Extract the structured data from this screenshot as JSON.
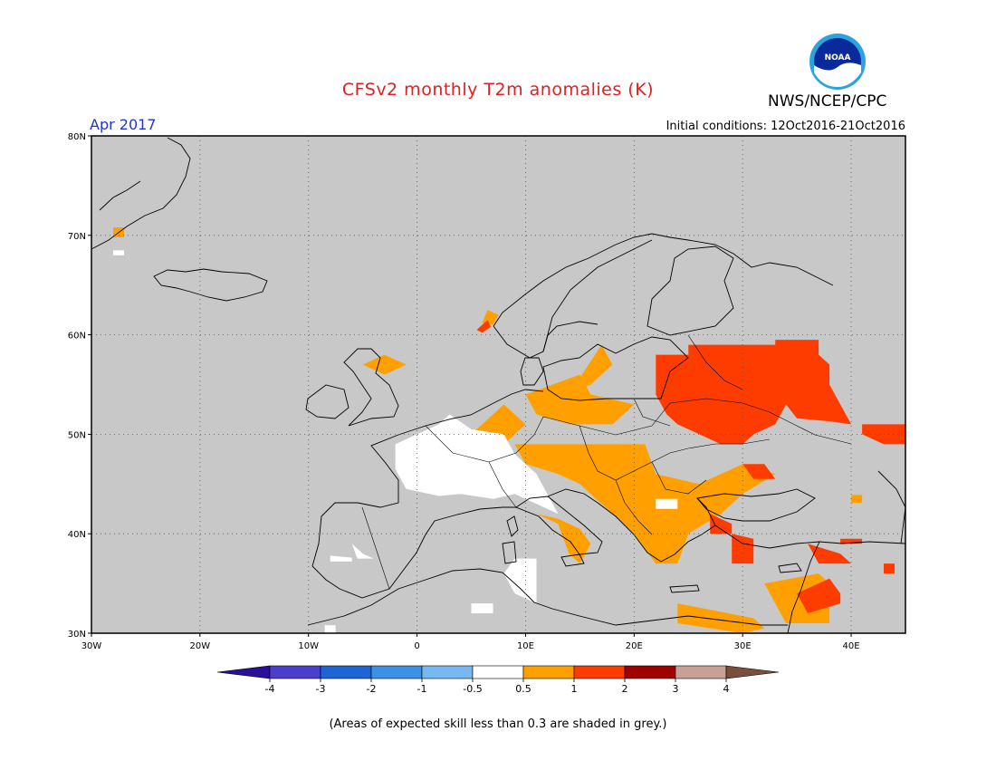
{
  "title": "CFSv2 monthly T2m anomalies (K)",
  "org": "NWS/NCEP/CPC",
  "logo_text": "NOAA",
  "month": "Apr 2017",
  "initial_conditions": "Initial conditions: 12Oct2016-21Oct2016",
  "footnote": "(Areas of expected skill less than 0.3 are shaded in grey.)",
  "map": {
    "lon_range": [
      -30,
      45
    ],
    "lat_range": [
      30,
      80
    ],
    "lon_ticks": [
      {
        "lon": -30,
        "label": "30W"
      },
      {
        "lon": -20,
        "label": "20W"
      },
      {
        "lon": -10,
        "label": "10W"
      },
      {
        "lon": 0,
        "label": "0"
      },
      {
        "lon": 10,
        "label": "10E"
      },
      {
        "lon": 20,
        "label": "20E"
      },
      {
        "lon": 30,
        "label": "30E"
      },
      {
        "lon": 40,
        "label": "40E"
      }
    ],
    "lat_ticks": [
      {
        "lat": 30,
        "label": "30N"
      },
      {
        "lat": 40,
        "label": "40N"
      },
      {
        "lat": 50,
        "label": "50N"
      },
      {
        "lat": 60,
        "label": "60N"
      },
      {
        "lat": 70,
        "label": "70N"
      },
      {
        "lat": 80,
        "label": "80N"
      }
    ],
    "grid": true,
    "background_color": "#c8c8c8"
  },
  "colorbar": {
    "labels": [
      "-4",
      "-3",
      "-2",
      "-1",
      "-0.5",
      "0.5",
      "1",
      "2",
      "3",
      "4"
    ],
    "colors": [
      "#2a0f9a",
      "#4a3fcc",
      "#1e64d2",
      "#3c90e6",
      "#78b8f0",
      "#ffffff",
      "#ffa000",
      "#ff3c00",
      "#a00000",
      "#c8a096",
      "#7a4e3e"
    ]
  },
  "anomaly_regions": [
    {
      "category": "0.5 to 1",
      "color": "#ffa000",
      "polygons": [
        [
          [
            9,
            49
          ],
          [
            21,
            49
          ],
          [
            22,
            46
          ],
          [
            26,
            45
          ],
          [
            30,
            47
          ],
          [
            33,
            46
          ],
          [
            30,
            44
          ],
          [
            28,
            42
          ],
          [
            25,
            40
          ],
          [
            24,
            37
          ],
          [
            22,
            37
          ],
          [
            20,
            40
          ],
          [
            17,
            43
          ],
          [
            15,
            45
          ],
          [
            13,
            46
          ],
          [
            10,
            47
          ]
        ],
        [
          [
            10,
            54
          ],
          [
            15,
            56
          ],
          [
            16,
            54
          ],
          [
            20,
            53
          ],
          [
            18,
            51
          ],
          [
            14,
            51
          ],
          [
            11,
            52
          ]
        ],
        [
          [
            14,
            54
          ],
          [
            17,
            59
          ],
          [
            18,
            57
          ],
          [
            16,
            55
          ]
        ],
        [
          [
            5,
            50
          ],
          [
            8,
            53
          ],
          [
            10,
            51
          ],
          [
            8,
            49
          ]
        ],
        [
          [
            -5,
            57
          ],
          [
            -3,
            58
          ],
          [
            -1,
            57
          ],
          [
            -3,
            56
          ]
        ],
        [
          [
            24,
            33
          ],
          [
            24,
            31
          ],
          [
            30,
            30
          ],
          [
            32,
            30.5
          ],
          [
            31,
            31.5
          ]
        ],
        [
          [
            32,
            35
          ],
          [
            37,
            36
          ],
          [
            38,
            35
          ],
          [
            38,
            31
          ],
          [
            34,
            31
          ],
          [
            33,
            33
          ]
        ],
        [
          [
            11,
            42
          ],
          [
            13,
            41
          ],
          [
            14,
            38
          ],
          [
            15,
            37
          ],
          [
            16,
            39
          ],
          [
            15,
            40.5
          ],
          [
            13,
            41.5
          ]
        ],
        [
          [
            -28,
            70.8
          ],
          [
            -27,
            70.8
          ],
          [
            -27,
            69.8
          ],
          [
            -28,
            69.8
          ]
        ],
        [
          [
            6,
            61.2
          ],
          [
            6.5,
            62.5
          ],
          [
            7.5,
            62
          ],
          [
            7,
            61
          ]
        ],
        [
          [
            40,
            43.9
          ],
          [
            41,
            43.9
          ],
          [
            41,
            43.1
          ],
          [
            40,
            43.1
          ]
        ]
      ]
    },
    {
      "category": "1 to 2",
      "color": "#ff3c00",
      "polygons": [
        [
          [
            22,
            58
          ],
          [
            25,
            58
          ],
          [
            25,
            59
          ],
          [
            33,
            59
          ],
          [
            33,
            59.5
          ],
          [
            37,
            59.5
          ],
          [
            37,
            58
          ],
          [
            38,
            57
          ],
          [
            38,
            55
          ],
          [
            39,
            53
          ],
          [
            40,
            51
          ],
          [
            38,
            51.3
          ],
          [
            35,
            51.6
          ],
          [
            34,
            53
          ],
          [
            33,
            51
          ],
          [
            31,
            50
          ],
          [
            30,
            49
          ],
          [
            28,
            49
          ],
          [
            26,
            50
          ],
          [
            24,
            51
          ],
          [
            23,
            52
          ],
          [
            22,
            54
          ]
        ],
        [
          [
            30,
            47
          ],
          [
            32,
            47
          ],
          [
            33,
            45.5
          ],
          [
            31,
            45.5
          ]
        ],
        [
          [
            27,
            42
          ],
          [
            29,
            41
          ],
          [
            29,
            40
          ],
          [
            27,
            40
          ]
        ],
        [
          [
            29,
            40
          ],
          [
            31,
            39.5
          ],
          [
            31,
            37
          ],
          [
            29,
            37
          ]
        ],
        [
          [
            35,
            34
          ],
          [
            38,
            35.5
          ],
          [
            39,
            34
          ],
          [
            39,
            33
          ],
          [
            36,
            32
          ]
        ],
        [
          [
            36,
            39
          ],
          [
            39,
            38
          ],
          [
            40,
            37
          ],
          [
            37,
            37
          ]
        ],
        [
          [
            41,
            51
          ],
          [
            45,
            51
          ],
          [
            45,
            49
          ],
          [
            43,
            49
          ],
          [
            41,
            50
          ]
        ],
        [
          [
            39,
            39.5
          ],
          [
            41,
            39.5
          ],
          [
            41,
            39
          ],
          [
            39,
            39
          ]
        ],
        [
          [
            43,
            37
          ],
          [
            44,
            37
          ],
          [
            44,
            36
          ],
          [
            43,
            36
          ]
        ],
        [
          [
            5.5,
            60.5
          ],
          [
            6.5,
            61.5
          ],
          [
            6.8,
            60.8
          ],
          [
            6,
            60.2
          ]
        ]
      ]
    },
    {
      "category": "-0.5 to 0.5",
      "color": "#ffffff",
      "polygons": [
        [
          [
            -2,
            49
          ],
          [
            2,
            51
          ],
          [
            3,
            52
          ],
          [
            5,
            50.5
          ],
          [
            8,
            50
          ],
          [
            9,
            48
          ],
          [
            11,
            46
          ],
          [
            12,
            44
          ],
          [
            13,
            42
          ],
          [
            11,
            43
          ],
          [
            9,
            44
          ],
          [
            7,
            43.5
          ],
          [
            4,
            44
          ],
          [
            2,
            43.8
          ],
          [
            -1,
            44.5
          ],
          [
            -2,
            46.5
          ]
        ],
        [
          [
            -6,
            39
          ],
          [
            -5,
            38
          ],
          [
            -4,
            37.5
          ],
          [
            -5.5,
            37.5
          ]
        ],
        [
          [
            -8,
            37.8
          ],
          [
            -6,
            37.6
          ],
          [
            -6,
            37.2
          ],
          [
            -8,
            37.2
          ]
        ],
        [
          [
            9,
            37.5
          ],
          [
            11,
            37.5
          ],
          [
            11,
            33
          ],
          [
            9,
            34
          ],
          [
            8,
            36
          ]
        ],
        [
          [
            5,
            33
          ],
          [
            7,
            33
          ],
          [
            7,
            32
          ],
          [
            5,
            32
          ]
        ],
        [
          [
            -28,
            68.5
          ],
          [
            -27,
            68.5
          ],
          [
            -27,
            68
          ],
          [
            -28,
            68
          ]
        ],
        [
          [
            -8.5,
            30.8
          ],
          [
            -7.5,
            30.8
          ],
          [
            -7.5,
            30
          ],
          [
            -8.5,
            30
          ]
        ],
        [
          [
            22,
            43.5
          ],
          [
            24,
            43.5
          ],
          [
            24,
            42.5
          ],
          [
            22,
            42.5
          ]
        ]
      ]
    }
  ]
}
